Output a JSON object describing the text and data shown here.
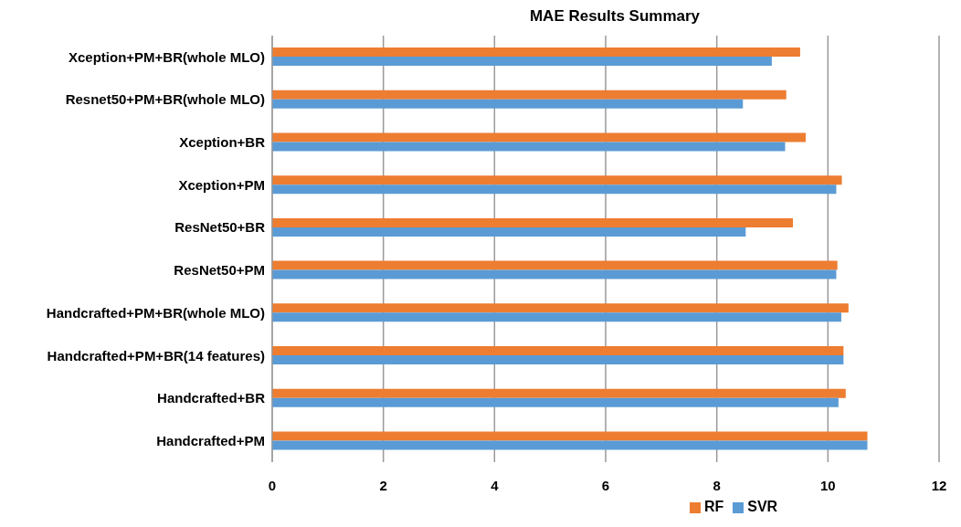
{
  "chart_data": {
    "type": "bar",
    "orientation": "horizontal",
    "title": "MAE Results Summary",
    "categories": [
      "Xception+PM+BR(whole MLO)",
      "Resnet50+PM+BR(whole MLO)",
      "Xception+BR",
      "Xception+PM",
      "ResNet50+BR",
      "ResNet50+PM",
      "Handcrafted+PM+BR(whole MLO)",
      "Handcrafted+PM+BR(14 features)",
      "Handcrafted+BR",
      "Handcrafted+PM"
    ],
    "series": [
      {
        "name": "RF",
        "color": "#ed7d31",
        "values": [
          9.5,
          9.25,
          9.6,
          10.25,
          9.37,
          10.17,
          10.37,
          10.28,
          10.32,
          10.71
        ]
      },
      {
        "name": "SVR",
        "color": "#5b9bd5",
        "values": [
          8.99,
          8.47,
          9.23,
          10.15,
          8.52,
          10.15,
          10.24,
          10.28,
          10.19,
          10.71
        ]
      }
    ],
    "xlim": [
      0,
      12
    ],
    "xticks": [
      0,
      2,
      4,
      6,
      8,
      10,
      12
    ],
    "grid": "x",
    "legend": "bottom"
  }
}
